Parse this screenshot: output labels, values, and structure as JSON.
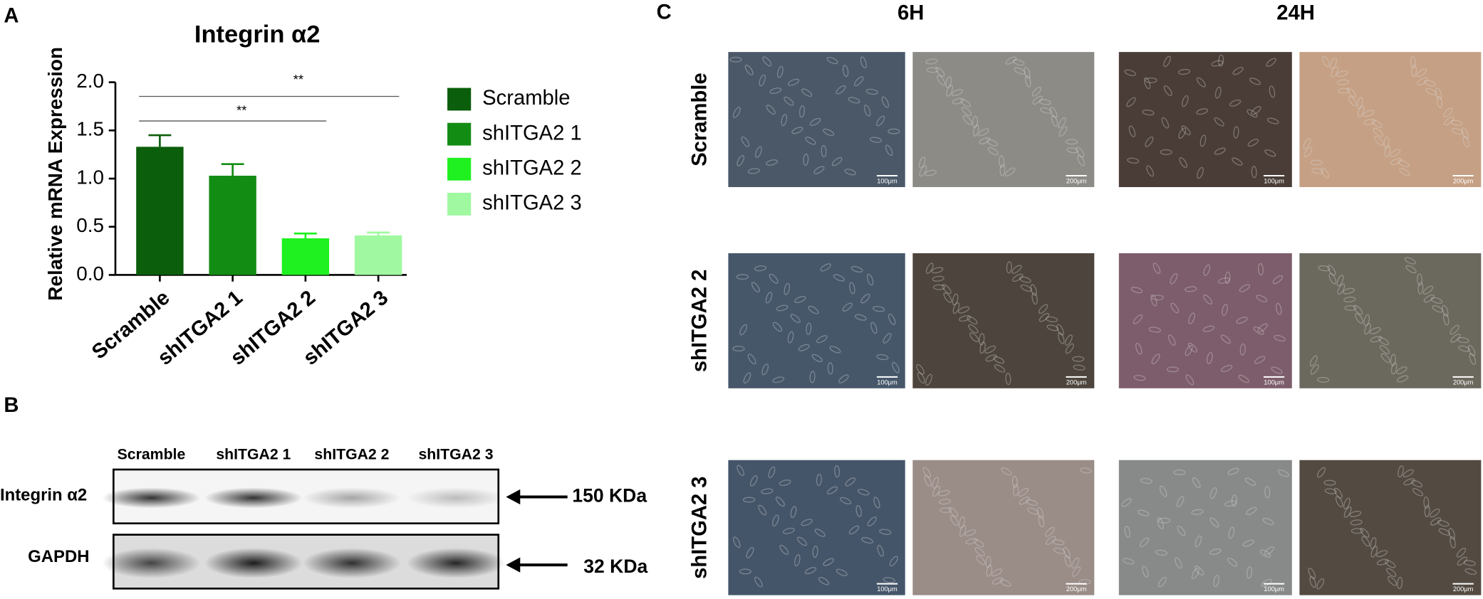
{
  "panels": [
    "A",
    "B",
    "C"
  ],
  "chart_data": {
    "type": "bar",
    "title": "Integrin α2",
    "y_label": "Relative  mRNA Expression",
    "categories": [
      "Scramble",
      "shITGA2 1",
      "shITGA2 2",
      "shITGA2 3"
    ],
    "values": [
      1.33,
      1.03,
      0.38,
      0.41
    ],
    "errors": [
      0.12,
      0.12,
      0.05,
      0.03
    ],
    "colors": [
      "#0b5e0b",
      "#138c13",
      "#1ff01f",
      "#a0f9a0"
    ],
    "ylim": [
      0,
      2
    ],
    "yticks": [
      {
        "value": 0,
        "label": "0.0"
      },
      {
        "value": 0.5,
        "label": "0.5"
      },
      {
        "value": 1,
        "label": "1.0"
      },
      {
        "value": 1.5,
        "label": "1.5"
      },
      {
        "value": 2,
        "label": "2.0"
      }
    ],
    "annotations": [
      "**",
      "**"
    ]
  },
  "blot": {
    "lanes": [
      "Scramble",
      "shITGA2 1",
      "shITGA2 2",
      "shITGA2 3"
    ],
    "rows": [
      {
        "label": "Integrin α2",
        "size": "150 KDa"
      },
      {
        "label": "GAPDH",
        "size": "32 KDa"
      }
    ]
  },
  "micrographs": {
    "columns": [
      "6H",
      "24H"
    ],
    "rows": [
      {
        "label": "Scramble",
        "scales": [
          "100μm",
          "200μm",
          "100μm",
          "200μm"
        ]
      },
      {
        "label": "shITGA2 2",
        "scales": [
          "100μm",
          "200μm",
          "100μm",
          "200μm"
        ]
      },
      {
        "label": "shITGA2 3",
        "scales": [
          "100μm",
          "200μm",
          "100μm",
          "200μm"
        ]
      }
    ]
  }
}
